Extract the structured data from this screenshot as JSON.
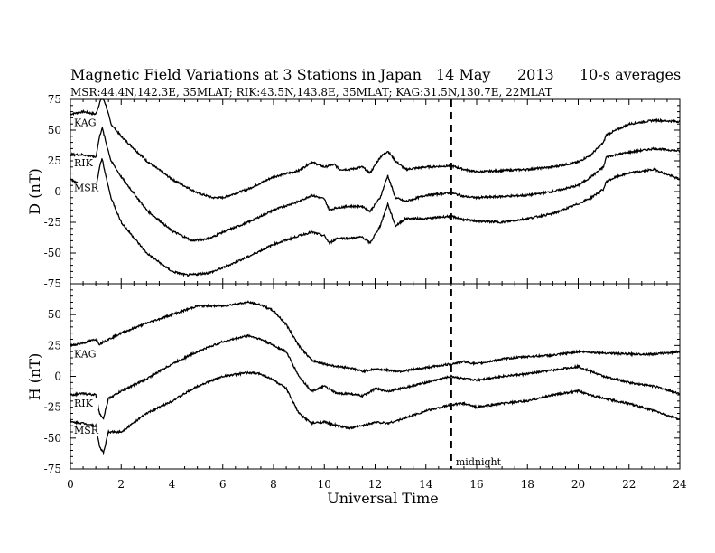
{
  "chart_data": [
    {
      "type": "line",
      "title": "Magnetic Field Variations at 3 Stations in Japan",
      "date": "14 May",
      "year": "2013",
      "averaging": "10-s averages",
      "subtitle": "MSR:44.4N,142.3E, 35MLAT;  RIK:43.5N,143.8E, 35MLAT;  KAG:31.5N,130.7E, 22MLAT",
      "ylabel": "D (nT)",
      "xlabel": "",
      "xlim": [
        0,
        24
      ],
      "ylim": [
        -75,
        75
      ],
      "yticks": [
        "75",
        "50",
        "25",
        "0",
        "-25",
        "-50",
        "-75"
      ],
      "yticks_values": [
        75,
        50,
        25,
        0,
        -25,
        -50,
        -75
      ],
      "series": [
        {
          "name": "KAG",
          "x": [
            0,
            0.5,
            1.0,
            1.15,
            1.25,
            1.4,
            1.6,
            2.0,
            3.0,
            4.0,
            5.0,
            5.6,
            6.0,
            7.0,
            8.0,
            9.0,
            9.5,
            10.0,
            10.4,
            10.6,
            11.0,
            11.5,
            11.8,
            12.2,
            12.5,
            12.8,
            13.2,
            14.0,
            15.0,
            15.5,
            16.0,
            17.0,
            18.0,
            19.0,
            20.0,
            20.5,
            21.0,
            21.1,
            21.5,
            22.0,
            23.0,
            24.0
          ],
          "y": [
            63,
            65,
            63,
            72,
            78,
            70,
            55,
            45,
            25,
            10,
            -1,
            -5,
            -5,
            2,
            12,
            17,
            24,
            20,
            22,
            18,
            18,
            20,
            15,
            28,
            33,
            25,
            18,
            20,
            21,
            18,
            16,
            17,
            18,
            20,
            24,
            30,
            40,
            46,
            50,
            55,
            58,
            57
          ]
        },
        {
          "name": "RIK",
          "x": [
            0,
            0.5,
            1.0,
            1.15,
            1.25,
            1.4,
            1.6,
            2.0,
            3.0,
            4.0,
            4.8,
            5.5,
            6.0,
            7.0,
            8.0,
            9.0,
            9.5,
            10.0,
            10.2,
            10.5,
            11.0,
            11.5,
            11.8,
            12.2,
            12.5,
            12.8,
            13.2,
            14.0,
            15.0,
            15.5,
            16.0,
            17.0,
            18.0,
            19.0,
            20.0,
            20.5,
            21.0,
            21.1,
            21.5,
            22.0,
            23.0,
            24.0
          ],
          "y": [
            30,
            30,
            28,
            45,
            52,
            40,
            25,
            12,
            -15,
            -32,
            -40,
            -38,
            -33,
            -25,
            -15,
            -8,
            -3,
            -6,
            -15,
            -13,
            -12,
            -12,
            -16,
            -5,
            13,
            -5,
            -8,
            -3,
            -1,
            -4,
            -5,
            -4,
            -3,
            0,
            5,
            12,
            20,
            28,
            30,
            32,
            35,
            33
          ]
        },
        {
          "name": "MSR",
          "x": [
            0,
            0.5,
            1.0,
            1.15,
            1.25,
            1.4,
            1.6,
            2.0,
            3.0,
            4.0,
            4.6,
            5.5,
            6.0,
            7.0,
            8.0,
            9.0,
            9.5,
            10.0,
            10.2,
            10.5,
            11.0,
            11.5,
            11.8,
            12.2,
            12.5,
            12.8,
            13.2,
            14.0,
            15.0,
            15.5,
            16.0,
            17.0,
            18.0,
            19.0,
            20.0,
            20.5,
            21.0,
            21.1,
            21.5,
            22.0,
            23.0,
            24.0
          ],
          "y": [
            10,
            5,
            2,
            20,
            27,
            12,
            -5,
            -25,
            -50,
            -65,
            -68,
            -66,
            -62,
            -53,
            -43,
            -36,
            -33,
            -36,
            -42,
            -38,
            -38,
            -37,
            -42,
            -28,
            -10,
            -28,
            -22,
            -22,
            -20,
            -23,
            -24,
            -25,
            -22,
            -18,
            -10,
            -5,
            2,
            8,
            12,
            15,
            18,
            10
          ]
        }
      ],
      "label_positions": "left, beside each trace"
    },
    {
      "type": "line",
      "ylabel": "H (nT)",
      "xlabel": "Universal Time",
      "xlim": [
        0,
        24
      ],
      "ylim": [
        -75,
        75
      ],
      "yticks": [
        "75",
        "50",
        "25",
        "0",
        "-25",
        "-50",
        "-75"
      ],
      "yticks_values": [
        75,
        50,
        25,
        0,
        -25,
        -50,
        -75
      ],
      "xticks": [
        "0",
        "2",
        "4",
        "6",
        "8",
        "10",
        "12",
        "14",
        "16",
        "18",
        "20",
        "22",
        "24"
      ],
      "xticks_values": [
        0,
        2,
        4,
        6,
        8,
        10,
        12,
        14,
        16,
        18,
        20,
        22,
        24
      ],
      "series": [
        {
          "name": "KAG",
          "x": [
            0,
            0.5,
            1.0,
            1.15,
            1.3,
            1.5,
            2.0,
            3.0,
            4.0,
            5.0,
            6.0,
            7.0,
            7.5,
            8.0,
            8.5,
            9.0,
            9.5,
            10.0,
            10.5,
            11.0,
            11.5,
            12.0,
            12.5,
            13.0,
            14.0,
            15.0,
            15.5,
            16.0,
            17.0,
            18.0,
            19.0,
            20.0,
            21.0,
            22.0,
            23.0,
            24.0
          ],
          "y": [
            25,
            27,
            30,
            26,
            28,
            30,
            35,
            43,
            50,
            57,
            57,
            60,
            58,
            53,
            42,
            25,
            13,
            10,
            8,
            7,
            4,
            6,
            5,
            4,
            7,
            10,
            12,
            10,
            14,
            16,
            17,
            20,
            19,
            18,
            18,
            20
          ]
        },
        {
          "name": "RIK",
          "x": [
            0,
            0.5,
            1.0,
            1.15,
            1.3,
            1.5,
            2.0,
            3.0,
            4.0,
            5.0,
            6.0,
            7.0,
            7.5,
            8.0,
            8.5,
            9.0,
            9.5,
            10.0,
            10.5,
            11.0,
            11.5,
            12.0,
            12.5,
            13.0,
            14.0,
            15.0,
            15.5,
            16.0,
            17.0,
            18.0,
            19.0,
            20.0,
            21.0,
            22.0,
            23.0,
            24.0
          ],
          "y": [
            -15,
            -14,
            -15,
            -30,
            -34,
            -18,
            -12,
            -2,
            10,
            20,
            28,
            33,
            30,
            25,
            20,
            0,
            -12,
            -8,
            -14,
            -14,
            -16,
            -10,
            -12,
            -10,
            -5,
            0,
            -2,
            -3,
            0,
            2,
            5,
            8,
            0,
            -5,
            -8,
            -14
          ]
        },
        {
          "name": "MSR",
          "x": [
            0,
            0.5,
            1.0,
            1.15,
            1.3,
            1.5,
            2.0,
            3.0,
            4.0,
            5.0,
            6.0,
            7.0,
            7.5,
            8.0,
            8.5,
            9.0,
            9.5,
            10.0,
            10.5,
            11.0,
            11.5,
            12.0,
            12.5,
            13.0,
            14.0,
            15.0,
            15.5,
            16.0,
            17.0,
            18.0,
            19.0,
            20.0,
            21.0,
            22.0,
            23.0,
            24.0
          ],
          "y": [
            -37,
            -38,
            -40,
            -57,
            -62,
            -45,
            -45,
            -30,
            -20,
            -8,
            0,
            3,
            2,
            -3,
            -10,
            -30,
            -38,
            -37,
            -40,
            -42,
            -40,
            -37,
            -38,
            -35,
            -28,
            -23,
            -22,
            -25,
            -22,
            -20,
            -15,
            -12,
            -18,
            -22,
            -28,
            -35
          ]
        }
      ],
      "annotations": [
        {
          "text": "midnight",
          "x": 15
        }
      ],
      "vertical_marker": {
        "x": 15,
        "style": "dashed"
      },
      "label_positions": "left, beside each trace"
    }
  ]
}
